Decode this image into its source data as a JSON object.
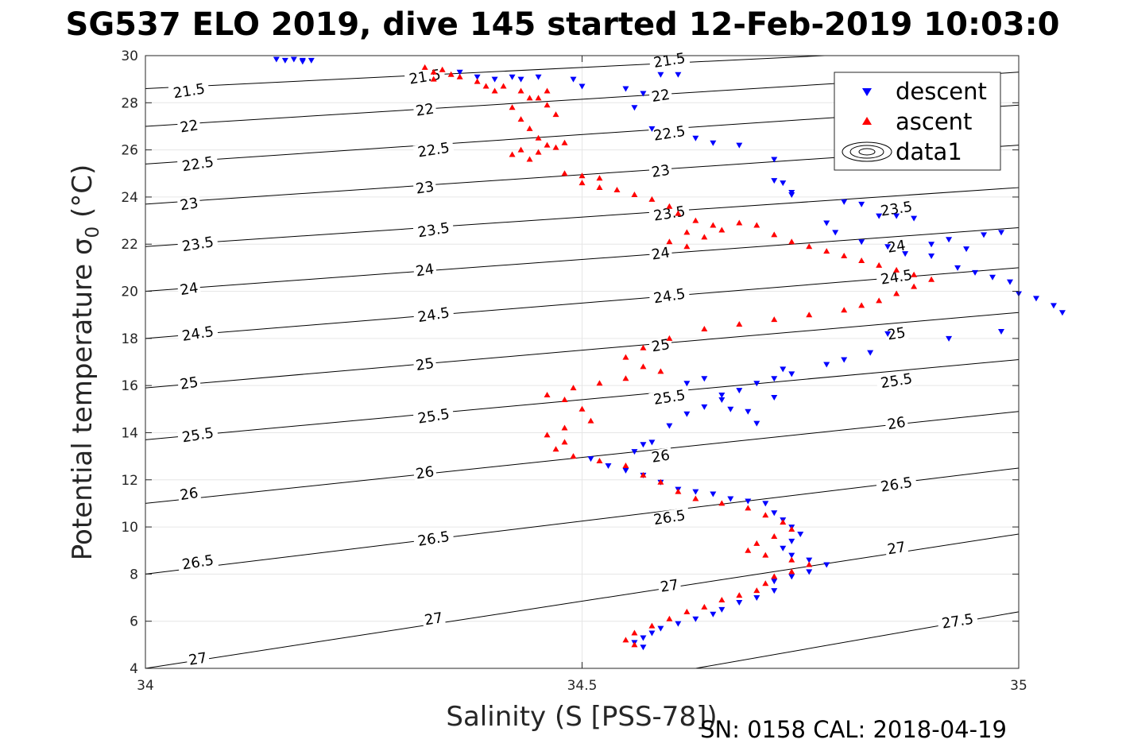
{
  "title": "SG537 ELO 2019, dive 145 started 12-Feb-2019 10:03:0",
  "footer": "SN: 0158  CAL: 2018-04-19",
  "legend": {
    "descent": "descent",
    "ascent": "ascent",
    "contours": "data1"
  },
  "colors": {
    "descent": "#0000ff",
    "ascent": "#ff0000",
    "contour": "#000000",
    "grid": "#e6e6e6"
  },
  "chart_data": {
    "type": "scatter",
    "xlabel": "Salinity (S [PSS-78])",
    "ylabel": "Potential temperature σ",
    "ylabel_sub": "0",
    "ylabel_unit": " (°C)",
    "xlim": [
      34,
      35
    ],
    "ylim": [
      4,
      30
    ],
    "xticks": [
      "34",
      "34.5",
      "35"
    ],
    "xtick_values": [
      34,
      34.5,
      35
    ],
    "yticks": [
      "4",
      "6",
      "8",
      "10",
      "12",
      "14",
      "16",
      "18",
      "20",
      "22",
      "24",
      "26",
      "28",
      "30"
    ],
    "ytick_values": [
      4,
      6,
      8,
      10,
      12,
      14,
      16,
      18,
      20,
      22,
      24,
      26,
      28,
      30
    ],
    "grid": true,
    "legend_position": "top-right",
    "contours": {
      "levels": [
        21.5,
        22,
        22.5,
        23,
        23.5,
        24,
        24.5,
        25,
        25.5,
        26,
        26.5,
        27,
        27.5
      ],
      "labels": [
        "21.5",
        "22",
        "22.5",
        "23",
        "23.5",
        "24",
        "24.5",
        "25",
        "25.5",
        "26",
        "26.5",
        "27",
        "27.5"
      ],
      "temperature_at_S34": [
        28.6,
        27.0,
        25.4,
        23.7,
        21.9,
        20.0,
        18.0,
        15.9,
        13.7,
        11.0,
        8.0,
        4.0,
        null
      ],
      "temperature_at_S35": [
        30.4,
        29.3,
        27.9,
        26.2,
        24.4,
        22.7,
        21.0,
        19.1,
        17.1,
        14.9,
        12.5,
        9.7,
        6.4
      ],
      "label_points": [
        {
          "label": "21.5",
          "s": 34.05,
          "t": 28.5
        },
        {
          "label": "21.5",
          "s": 34.32,
          "t": 29.1
        },
        {
          "label": "21.5",
          "s": 34.6,
          "t": 29.8
        },
        {
          "label": "22",
          "s": 34.05,
          "t": 27.0
        },
        {
          "label": "22",
          "s": 34.32,
          "t": 27.7
        },
        {
          "label": "22",
          "s": 34.59,
          "t": 28.3
        },
        {
          "label": "22.5",
          "s": 34.06,
          "t": 25.4
        },
        {
          "label": "22.5",
          "s": 34.33,
          "t": 26.0
        },
        {
          "label": "22.5",
          "s": 34.6,
          "t": 26.7
        },
        {
          "label": "23",
          "s": 34.05,
          "t": 23.7
        },
        {
          "label": "23",
          "s": 34.32,
          "t": 24.4
        },
        {
          "label": "23",
          "s": 34.59,
          "t": 25.1
        },
        {
          "label": "23.5",
          "s": 34.86,
          "t": 23.5
        },
        {
          "label": "23.5",
          "s": 34.06,
          "t": 22.0
        },
        {
          "label": "23.5",
          "s": 34.33,
          "t": 22.6
        },
        {
          "label": "23.5",
          "s": 34.6,
          "t": 23.3
        },
        {
          "label": "24",
          "s": 34.86,
          "t": 21.9
        },
        {
          "label": "24",
          "s": 34.05,
          "t": 20.1
        },
        {
          "label": "24",
          "s": 34.32,
          "t": 20.9
        },
        {
          "label": "24",
          "s": 34.59,
          "t": 21.6
        },
        {
          "label": "24.5",
          "s": 34.86,
          "t": 20.6
        },
        {
          "label": "24.5",
          "s": 34.06,
          "t": 18.2
        },
        {
          "label": "24.5",
          "s": 34.33,
          "t": 19.0
        },
        {
          "label": "24.5",
          "s": 34.6,
          "t": 19.8
        },
        {
          "label": "25",
          "s": 34.86,
          "t": 18.2
        },
        {
          "label": "25",
          "s": 34.05,
          "t": 16.1
        },
        {
          "label": "25",
          "s": 34.32,
          "t": 16.9
        },
        {
          "label": "25",
          "s": 34.59,
          "t": 17.7
        },
        {
          "label": "25.5",
          "s": 34.86,
          "t": 16.2
        },
        {
          "label": "25.5",
          "s": 34.06,
          "t": 13.9
        },
        {
          "label": "25.5",
          "s": 34.33,
          "t": 14.7
        },
        {
          "label": "25.5",
          "s": 34.6,
          "t": 15.5
        },
        {
          "label": "26",
          "s": 34.86,
          "t": 14.4
        },
        {
          "label": "26",
          "s": 34.05,
          "t": 11.4
        },
        {
          "label": "26",
          "s": 34.32,
          "t": 12.3
        },
        {
          "label": "26",
          "s": 34.59,
          "t": 13.0
        },
        {
          "label": "26.5",
          "s": 34.86,
          "t": 11.8
        },
        {
          "label": "26.5",
          "s": 34.06,
          "t": 8.5
        },
        {
          "label": "26.5",
          "s": 34.33,
          "t": 9.5
        },
        {
          "label": "26.5",
          "s": 34.6,
          "t": 10.4
        },
        {
          "label": "27",
          "s": 34.86,
          "t": 9.1
        },
        {
          "label": "27",
          "s": 34.06,
          "t": 4.4
        },
        {
          "label": "27",
          "s": 34.33,
          "t": 6.1
        },
        {
          "label": "27",
          "s": 34.6,
          "t": 7.5
        },
        {
          "label": "27.5",
          "s": 34.93,
          "t": 6.0
        }
      ]
    },
    "series": [
      {
        "name": "descent",
        "marker": "triangle-down",
        "color": "#0000ff",
        "points": [
          [
            34.15,
            29.85
          ],
          [
            34.16,
            29.8
          ],
          [
            34.17,
            29.85
          ],
          [
            34.18,
            29.8
          ],
          [
            34.18,
            29.75
          ],
          [
            34.19,
            29.8
          ],
          [
            34.36,
            29.3
          ],
          [
            34.38,
            29.1
          ],
          [
            34.4,
            29.0
          ],
          [
            34.42,
            29.1
          ],
          [
            34.43,
            29.0
          ],
          [
            34.45,
            29.1
          ],
          [
            34.49,
            29.0
          ],
          [
            34.5,
            28.7
          ],
          [
            34.55,
            28.6
          ],
          [
            34.57,
            28.4
          ],
          [
            34.59,
            29.2
          ],
          [
            34.61,
            29.2
          ],
          [
            34.56,
            27.8
          ],
          [
            34.58,
            26.9
          ],
          [
            34.63,
            26.5
          ],
          [
            34.65,
            26.3
          ],
          [
            34.68,
            26.2
          ],
          [
            34.72,
            25.6
          ],
          [
            34.73,
            24.6
          ],
          [
            34.74,
            24.2
          ],
          [
            34.72,
            24.7
          ],
          [
            34.74,
            24.1
          ],
          [
            34.78,
            22.9
          ],
          [
            34.79,
            22.5
          ],
          [
            34.82,
            22.1
          ],
          [
            34.85,
            21.9
          ],
          [
            34.87,
            21.6
          ],
          [
            34.9,
            22.0
          ],
          [
            34.92,
            22.2
          ],
          [
            34.94,
            21.8
          ],
          [
            34.96,
            22.4
          ],
          [
            34.98,
            22.5
          ],
          [
            34.8,
            23.8
          ],
          [
            34.82,
            23.7
          ],
          [
            34.84,
            23.2
          ],
          [
            34.86,
            23.2
          ],
          [
            34.88,
            23.1
          ],
          [
            34.9,
            21.5
          ],
          [
            34.93,
            21.0
          ],
          [
            34.95,
            20.8
          ],
          [
            34.97,
            20.6
          ],
          [
            34.99,
            20.4
          ],
          [
            35.0,
            19.9
          ],
          [
            35.02,
            19.7
          ],
          [
            35.04,
            19.4
          ],
          [
            35.05,
            19.1
          ],
          [
            34.98,
            18.3
          ],
          [
            34.92,
            18.0
          ],
          [
            34.85,
            18.2
          ],
          [
            34.83,
            17.4
          ],
          [
            34.8,
            17.1
          ],
          [
            34.78,
            16.9
          ],
          [
            34.74,
            16.5
          ],
          [
            34.72,
            16.3
          ],
          [
            34.7,
            16.1
          ],
          [
            34.68,
            15.8
          ],
          [
            34.66,
            15.4
          ],
          [
            34.64,
            15.1
          ],
          [
            34.62,
            14.8
          ],
          [
            34.6,
            14.3
          ],
          [
            34.58,
            13.6
          ],
          [
            34.57,
            13.5
          ],
          [
            34.56,
            13.2
          ],
          [
            34.64,
            16.3
          ],
          [
            34.62,
            16.1
          ],
          [
            34.66,
            15.6
          ],
          [
            34.67,
            15.0
          ],
          [
            34.69,
            14.9
          ],
          [
            34.7,
            14.4
          ],
          [
            34.72,
            15.5
          ],
          [
            34.73,
            16.7
          ],
          [
            34.51,
            12.9
          ],
          [
            34.53,
            12.6
          ],
          [
            34.55,
            12.4
          ],
          [
            34.57,
            12.2
          ],
          [
            34.59,
            11.9
          ],
          [
            34.61,
            11.6
          ],
          [
            34.63,
            11.5
          ],
          [
            34.65,
            11.4
          ],
          [
            34.67,
            11.2
          ],
          [
            34.69,
            11.1
          ],
          [
            34.71,
            11.0
          ],
          [
            34.72,
            10.6
          ],
          [
            34.73,
            10.3
          ],
          [
            34.74,
            10.0
          ],
          [
            34.75,
            9.7
          ],
          [
            34.74,
            9.4
          ],
          [
            34.73,
            9.1
          ],
          [
            34.74,
            8.8
          ],
          [
            34.76,
            8.6
          ],
          [
            34.78,
            8.4
          ],
          [
            34.76,
            8.1
          ],
          [
            34.74,
            7.9
          ],
          [
            34.72,
            7.7
          ],
          [
            34.72,
            7.3
          ],
          [
            34.7,
            7.0
          ],
          [
            34.68,
            6.8
          ],
          [
            34.66,
            6.5
          ],
          [
            34.65,
            6.3
          ],
          [
            34.63,
            6.1
          ],
          [
            34.61,
            5.9
          ],
          [
            34.59,
            5.7
          ],
          [
            34.58,
            5.5
          ],
          [
            34.57,
            5.3
          ],
          [
            34.56,
            5.1
          ],
          [
            34.57,
            4.9
          ]
        ]
      },
      {
        "name": "ascent",
        "marker": "triangle-up",
        "color": "#ff0000",
        "points": [
          [
            34.32,
            29.5
          ],
          [
            34.33,
            29.3
          ],
          [
            34.34,
            29.4
          ],
          [
            34.35,
            29.2
          ],
          [
            34.33,
            29.0
          ],
          [
            34.36,
            29.1
          ],
          [
            34.38,
            28.9
          ],
          [
            34.39,
            28.7
          ],
          [
            34.4,
            28.5
          ],
          [
            34.41,
            28.7
          ],
          [
            34.43,
            28.5
          ],
          [
            34.44,
            28.2
          ],
          [
            34.42,
            27.8
          ],
          [
            34.43,
            27.3
          ],
          [
            34.44,
            26.9
          ],
          [
            34.45,
            26.5
          ],
          [
            34.46,
            26.2
          ],
          [
            34.43,
            26.0
          ],
          [
            34.42,
            25.8
          ],
          [
            34.44,
            25.6
          ],
          [
            34.45,
            25.9
          ],
          [
            34.47,
            26.1
          ],
          [
            34.48,
            26.3
          ],
          [
            34.47,
            27.5
          ],
          [
            34.46,
            27.9
          ],
          [
            34.45,
            28.2
          ],
          [
            34.46,
            28.5
          ],
          [
            34.48,
            25.0
          ],
          [
            34.5,
            24.9
          ],
          [
            34.52,
            24.8
          ],
          [
            34.5,
            24.6
          ],
          [
            34.52,
            24.4
          ],
          [
            34.54,
            24.3
          ],
          [
            34.56,
            24.1
          ],
          [
            34.58,
            23.9
          ],
          [
            34.6,
            23.6
          ],
          [
            34.61,
            23.3
          ],
          [
            34.63,
            23.0
          ],
          [
            34.65,
            22.8
          ],
          [
            34.62,
            22.5
          ],
          [
            34.6,
            22.1
          ],
          [
            34.62,
            21.9
          ],
          [
            34.64,
            22.3
          ],
          [
            34.66,
            22.6
          ],
          [
            34.68,
            22.9
          ],
          [
            34.7,
            22.8
          ],
          [
            34.72,
            22.4
          ],
          [
            34.74,
            22.1
          ],
          [
            34.76,
            21.9
          ],
          [
            34.78,
            21.7
          ],
          [
            34.8,
            21.5
          ],
          [
            34.82,
            21.3
          ],
          [
            34.84,
            21.1
          ],
          [
            34.86,
            20.9
          ],
          [
            34.88,
            20.7
          ],
          [
            34.9,
            20.5
          ],
          [
            34.88,
            20.2
          ],
          [
            34.86,
            19.9
          ],
          [
            34.84,
            19.6
          ],
          [
            34.82,
            19.4
          ],
          [
            34.8,
            19.2
          ],
          [
            34.76,
            19.0
          ],
          [
            34.72,
            18.8
          ],
          [
            34.68,
            18.6
          ],
          [
            34.64,
            18.4
          ],
          [
            34.6,
            18.0
          ],
          [
            34.57,
            17.6
          ],
          [
            34.55,
            17.2
          ],
          [
            34.57,
            16.8
          ],
          [
            34.59,
            16.6
          ],
          [
            34.55,
            16.3
          ],
          [
            34.52,
            16.1
          ],
          [
            34.49,
            15.9
          ],
          [
            34.46,
            15.6
          ],
          [
            34.48,
            15.4
          ],
          [
            34.5,
            15.0
          ],
          [
            34.51,
            14.5
          ],
          [
            34.48,
            14.2
          ],
          [
            34.46,
            13.9
          ],
          [
            34.48,
            13.6
          ],
          [
            34.47,
            13.3
          ],
          [
            34.49,
            13.0
          ],
          [
            34.52,
            12.8
          ],
          [
            34.55,
            12.6
          ],
          [
            34.57,
            12.2
          ],
          [
            34.59,
            11.9
          ],
          [
            34.61,
            11.5
          ],
          [
            34.63,
            11.2
          ],
          [
            34.66,
            11.0
          ],
          [
            34.69,
            10.8
          ],
          [
            34.71,
            10.5
          ],
          [
            34.73,
            10.2
          ],
          [
            34.74,
            9.9
          ],
          [
            34.72,
            9.6
          ],
          [
            34.7,
            9.3
          ],
          [
            34.69,
            9.0
          ],
          [
            34.71,
            8.8
          ],
          [
            34.74,
            8.6
          ],
          [
            34.76,
            8.4
          ],
          [
            34.74,
            8.1
          ],
          [
            34.72,
            7.9
          ],
          [
            34.71,
            7.6
          ],
          [
            34.7,
            7.3
          ],
          [
            34.68,
            7.1
          ],
          [
            34.66,
            6.9
          ],
          [
            34.64,
            6.6
          ],
          [
            34.62,
            6.4
          ],
          [
            34.6,
            6.1
          ],
          [
            34.58,
            5.8
          ],
          [
            34.56,
            5.5
          ],
          [
            34.55,
            5.2
          ],
          [
            34.56,
            5.0
          ]
        ]
      }
    ]
  }
}
